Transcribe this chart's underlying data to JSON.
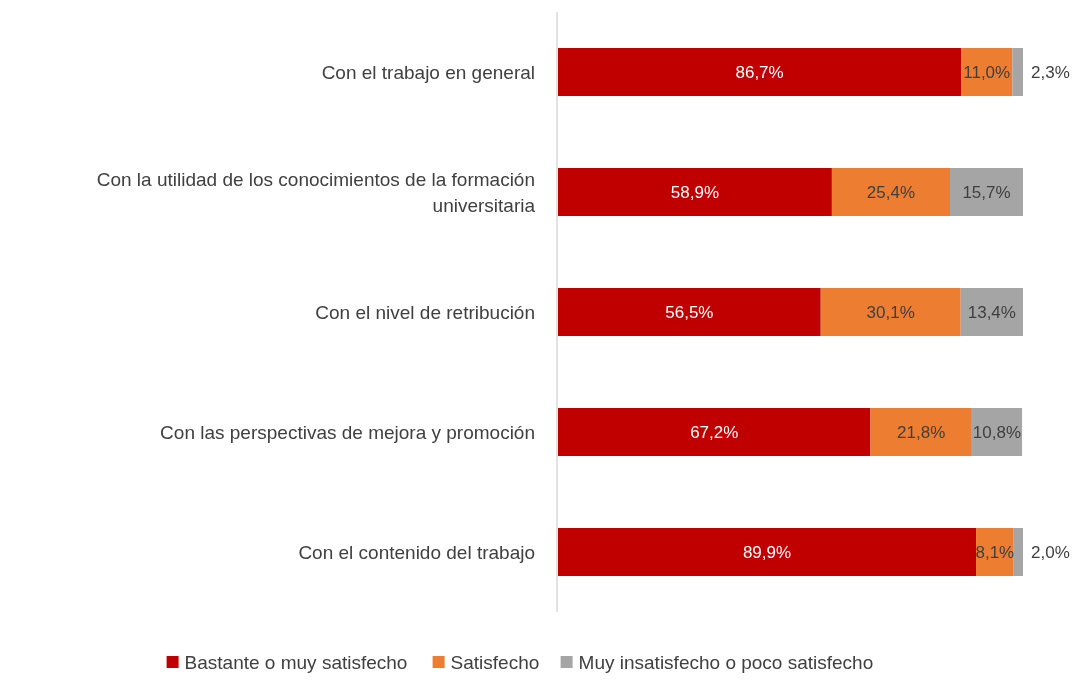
{
  "chart_data": {
    "type": "bar",
    "orientation": "horizontal",
    "stacked": true,
    "legend": "bottom",
    "categories": [
      "Con el trabajo en general",
      "Con la utilidad de los conocimientos de la formación universitaria",
      "Con el nivel de retribución",
      "Con las perspectivas de mejora y promoción",
      "Con el contenido del trabajo"
    ],
    "series": [
      {
        "name": "Bastante o muy satisfecho",
        "color": "#c00000",
        "values": [
          86.7,
          58.9,
          56.5,
          67.2,
          89.9
        ],
        "value_labels": [
          "86,7%",
          "58,9%",
          "56,5%",
          "67,2%",
          "89,9%"
        ]
      },
      {
        "name": "Satisfecho",
        "color": "#ed7d31",
        "values": [
          11.0,
          25.4,
          30.1,
          21.8,
          8.1
        ],
        "value_labels": [
          "11,0%",
          "25,4%",
          "30,1%",
          "21,8%",
          "8,1%"
        ]
      },
      {
        "name": "Muy insatisfecho o poco satisfecho",
        "color": "#a5a5a5",
        "values": [
          2.3,
          15.7,
          13.4,
          10.8,
          2.0
        ],
        "value_labels": [
          "2,3%",
          "15,7%",
          "13,4%",
          "10,8%",
          "2,0%"
        ]
      }
    ]
  }
}
